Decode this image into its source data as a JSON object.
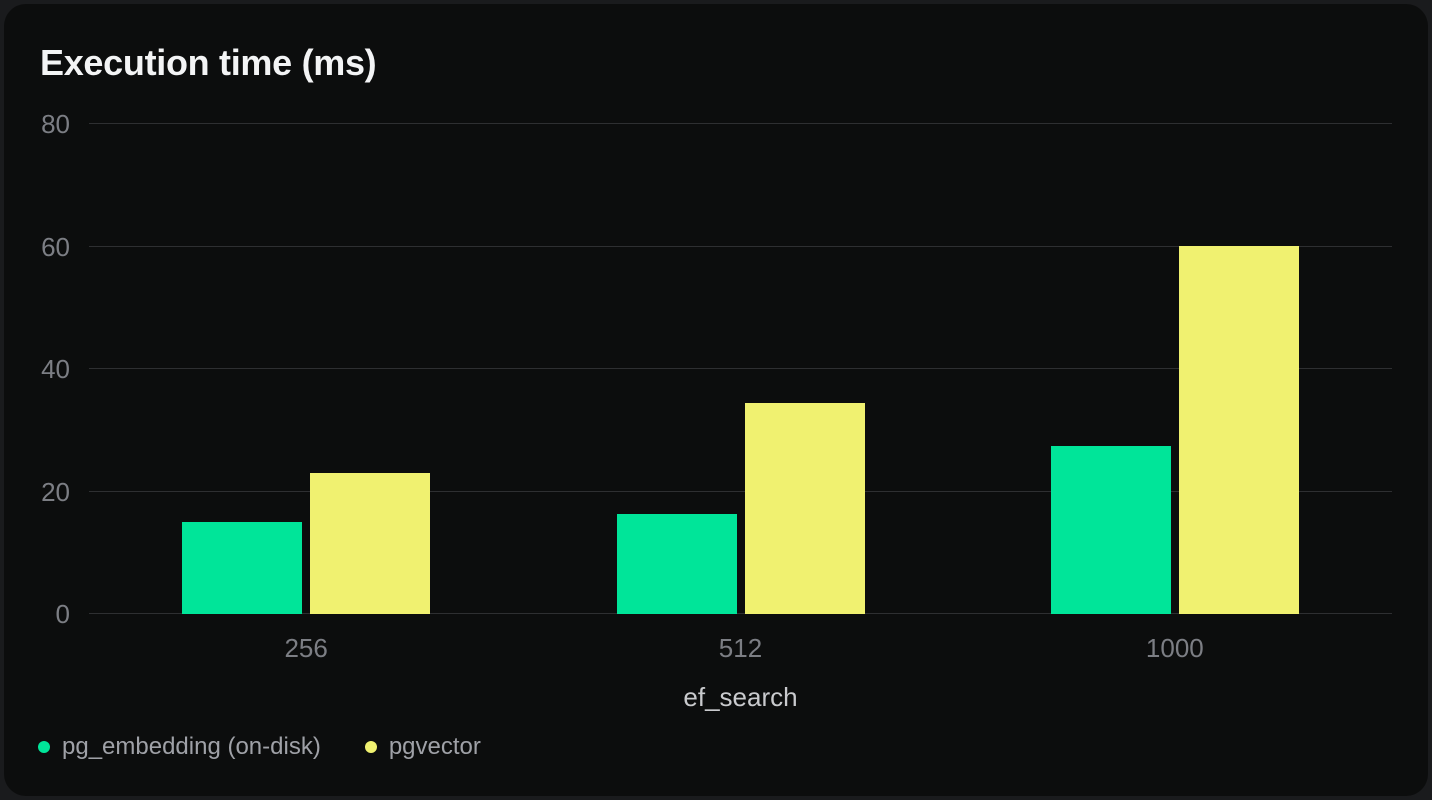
{
  "chart_data": {
    "type": "bar",
    "title": "Execution time (ms)",
    "xlabel": "ef_search",
    "ylabel": "",
    "categories": [
      "256",
      "512",
      "1000"
    ],
    "series": [
      {
        "name": "pg_embedding (on-disk)",
        "color": "#00e599",
        "values": [
          15.1,
          16.3,
          27.4
        ]
      },
      {
        "name": "pgvector",
        "color": "#f0f170",
        "values": [
          23.0,
          34.4,
          60.1
        ]
      }
    ],
    "ylim": [
      0,
      80
    ],
    "yticks": [
      0,
      20,
      40,
      60,
      80
    ],
    "grid": true,
    "legend_position": "bottom-left"
  },
  "colors": {
    "page_bg": "#1a1b1d",
    "card_bg": "#0c0d0d",
    "title": "#f3f4f5",
    "gridline": "#2e2f31",
    "tick_label": "#7c7e84",
    "axis_label": "#c9cacd",
    "legend_text": "#9fa1a7"
  }
}
